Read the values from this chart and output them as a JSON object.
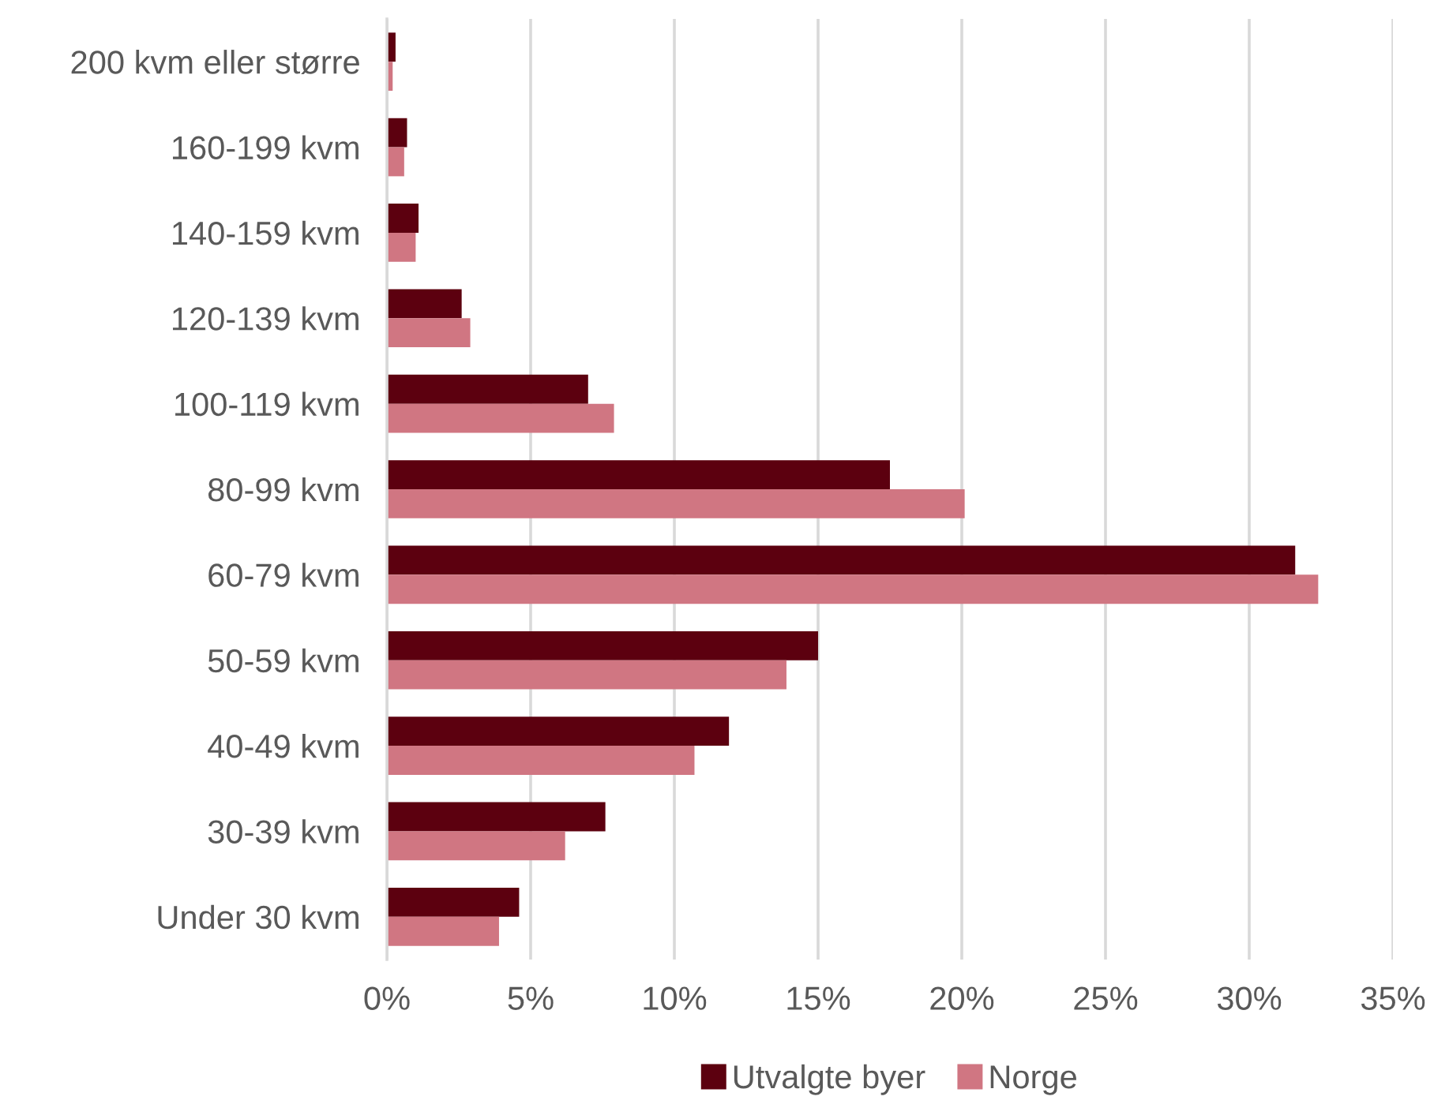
{
  "chart_data": {
    "type": "bar",
    "orientation": "horizontal",
    "categories": [
      "200 kvm eller større",
      "160-199 kvm",
      "140-159 kvm",
      "120-139 kvm",
      "100-119 kvm",
      "80-99 kvm",
      "60-79 kvm",
      "50-59 kvm",
      "40-49 kvm",
      "30-39 kvm",
      "Under 30 kvm"
    ],
    "series": [
      {
        "name": "Utvalgte byer",
        "color": "#5c000f",
        "values": [
          0.3,
          0.7,
          1.1,
          2.6,
          7.0,
          17.5,
          31.6,
          15.0,
          11.9,
          7.6,
          4.6
        ]
      },
      {
        "name": "Norge",
        "color": "#d07682",
        "values": [
          0.2,
          0.6,
          1.0,
          2.9,
          7.9,
          20.1,
          32.4,
          13.9,
          10.7,
          6.2,
          3.9
        ]
      }
    ],
    "xlim": [
      0,
      35
    ],
    "xticks": [
      {
        "value": 0,
        "label": "0%"
      },
      {
        "value": 5,
        "label": "5%"
      },
      {
        "value": 10,
        "label": "10%"
      },
      {
        "value": 15,
        "label": "15%"
      },
      {
        "value": 20,
        "label": "20%"
      },
      {
        "value": 25,
        "label": "25%"
      },
      {
        "value": 30,
        "label": "30%"
      },
      {
        "value": 35,
        "label": "35%"
      }
    ],
    "grid": "x",
    "legend": "bottom"
  }
}
